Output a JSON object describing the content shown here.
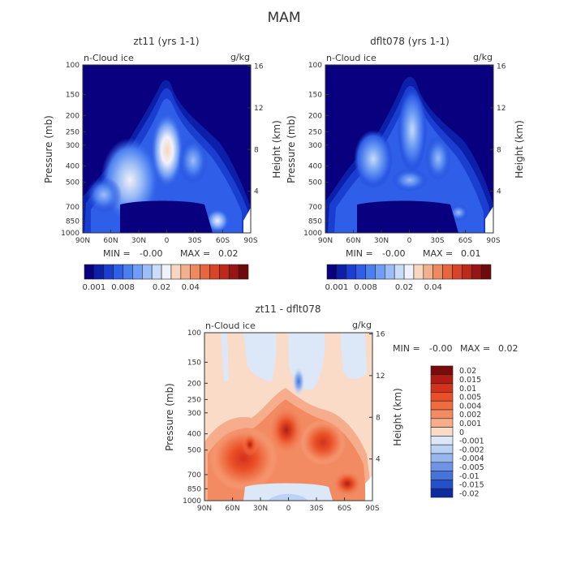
{
  "page": {
    "title": "MAM"
  },
  "chart_data": [
    {
      "type": "heatmap",
      "title": "zt11 (yrs 1-1)",
      "subtitle_left": "n-Cloud ice",
      "subtitle_right": "g/kg",
      "ylabel": "Pressure (mb)",
      "ylabel_right": "Height (km)",
      "x_ticks": [
        "90N",
        "60N",
        "30N",
        "0",
        "30S",
        "60S",
        "90S"
      ],
      "y_ticks": [
        "100",
        "150",
        "200",
        "250",
        "300",
        "400",
        "500",
        "700",
        "850",
        "1000"
      ],
      "y_right_ticks": [
        "16",
        "12",
        "8",
        "4"
      ],
      "min_label": "MIN =",
      "min_value": "-0.00",
      "max_label": "MAX =",
      "max_value": "0.02",
      "colorbar_labels": [
        "0.001",
        "0.008",
        "0.02",
        "0.04"
      ]
    },
    {
      "type": "heatmap",
      "title": "dflt078 (yrs 1-1)",
      "subtitle_left": "n-Cloud ice",
      "subtitle_right": "g/kg",
      "ylabel": "Pressure (mb)",
      "ylabel_right": "Height (km)",
      "x_ticks": [
        "90N",
        "60N",
        "30N",
        "0",
        "30S",
        "60S",
        "90S"
      ],
      "y_ticks": [
        "100",
        "150",
        "200",
        "250",
        "300",
        "400",
        "500",
        "700",
        "850",
        "1000"
      ],
      "y_right_ticks": [
        "16",
        "12",
        "8",
        "4"
      ],
      "min_label": "MIN =",
      "min_value": "-0.00",
      "max_label": "MAX =",
      "max_value": "0.01",
      "colorbar_labels": [
        "0.001",
        "0.008",
        "0.02",
        "0.04"
      ]
    },
    {
      "type": "heatmap",
      "title": "zt11 - dflt078",
      "subtitle_left": "n-Cloud ice",
      "subtitle_right": "g/kg",
      "ylabel": "Pressure (mb)",
      "ylabel_right": "Height (km)",
      "x_ticks": [
        "90N",
        "60N",
        "30N",
        "0",
        "30S",
        "60S",
        "90S"
      ],
      "y_ticks": [
        "100",
        "150",
        "200",
        "250",
        "300",
        "400",
        "500",
        "700",
        "850",
        "1000"
      ],
      "y_right_ticks": [
        "16",
        "12",
        "8",
        "4"
      ],
      "min_label": "MIN =",
      "min_value": "-0.00",
      "max_label": "MAX =",
      "max_value": "0.02",
      "colorbar_labels": [
        "0.02",
        "0.015",
        "0.01",
        "0.005",
        "0.004",
        "0.002",
        "0.001",
        "0",
        "-0.001",
        "-0.002",
        "-0.004",
        "-0.005",
        "-0.01",
        "-0.015",
        "-0.02"
      ]
    }
  ],
  "colors": {
    "abs_scale": [
      "#08007f",
      "#0b1fa8",
      "#1a3fd0",
      "#2f5ee8",
      "#4a7ff0",
      "#6f9ef4",
      "#9dbdf6",
      "#c9dcf9",
      "#f1f1f9",
      "#f7d7c0",
      "#f3b08c",
      "#ee8a62",
      "#e8663f",
      "#d8442a",
      "#bc2a1a",
      "#981515",
      "#6e0a0a"
    ],
    "diff_scale": [
      "#7b0a0a",
      "#b01c12",
      "#d3311c",
      "#ea4f27",
      "#f06b3e",
      "#f38b62",
      "#f6ad8c",
      "#f9dbc8",
      "#dce8f8",
      "#bcd2f4",
      "#98b6ee",
      "#6f94e7",
      "#4672dc",
      "#2450c8",
      "#0d2aa0"
    ]
  }
}
